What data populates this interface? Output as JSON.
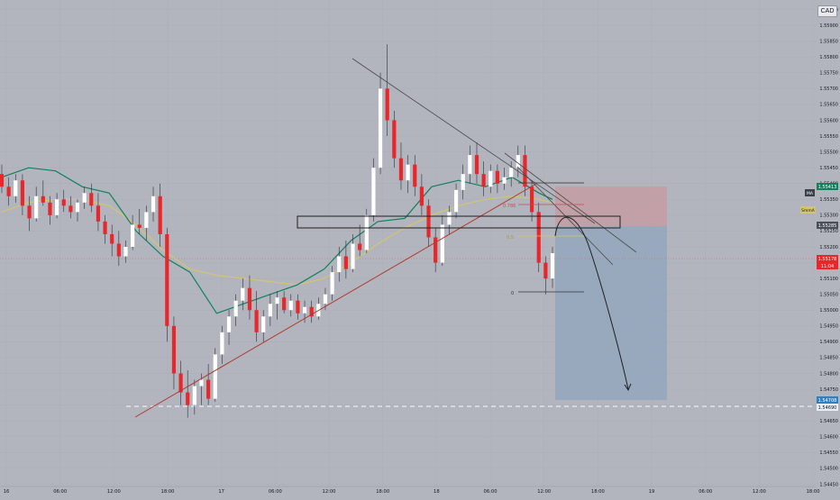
{
  "chart": {
    "currency_label": "CAD",
    "y_ticks": [
      "1.55950",
      "1.55900",
      "1.55850",
      "1.55800",
      "1.55750",
      "1.55700",
      "1.55650",
      "1.55600",
      "1.55550",
      "1.55500",
      "1.55450",
      "1.55400",
      "1.55350",
      "1.55300",
      "1.55250",
      "1.55200",
      "1.55150",
      "1.55100",
      "1.55050",
      "1.55000",
      "1.54950",
      "1.54900",
      "1.54850",
      "1.54800",
      "1.54750",
      "1.54700",
      "1.54650",
      "1.54600",
      "1.54550",
      "1.54500",
      "1.54450"
    ],
    "x_ticks": [
      "16",
      "06:00",
      "12:00",
      "18:00",
      "17",
      "06:00",
      "12:00",
      "18:00",
      "18",
      "06:00",
      "12:00",
      "18:00",
      "19",
      "06:00",
      "12:00",
      "18:00"
    ],
    "price_badges": {
      "ma_tag": "MA",
      "price_1554": "1.55413",
      "smma_label": "SmmA",
      "price_1552": "1.55285",
      "last_price": "1.55178",
      "countdown": "11:04",
      "target_price": "1.54708",
      "target_price_2": "1.54690"
    },
    "fib_labels": {
      "fib_0786": "0.786",
      "fib_05": "0.5",
      "fib_0": "0"
    },
    "colors": {
      "background": "#b2b5be",
      "bull": "#ffffff",
      "bear": "#e8272b",
      "ma_green": "#11805c",
      "smma_yellow": "#d4c56c",
      "trendline_red": "#b03a2e",
      "stop_zone": "#c79a9f",
      "target_zone": "#8fa5bd"
    }
  },
  "chart_data": {
    "type": "candlestick",
    "symbol_quote_currency": "CAD",
    "y_axis_ticks": [
      1.5595,
      1.559,
      1.5585,
      1.558,
      1.5575,
      1.557,
      1.5565,
      1.556,
      1.5555,
      1.555,
      1.5545,
      1.554,
      1.5535,
      1.553,
      1.5525,
      1.552,
      1.5515,
      1.551,
      1.5505,
      1.55,
      1.5495,
      1.549,
      1.5485,
      1.548,
      1.5475,
      1.547,
      1.5465,
      1.546,
      1.5455,
      1.545,
      1.5445
    ],
    "ylim": [
      1.5442,
      1.5598
    ],
    "x_axis_ticks": [
      "16",
      "06:00",
      "12:00",
      "18:00",
      "17",
      "06:00",
      "12:00",
      "18:00",
      "18",
      "06:00",
      "12:00",
      "18:00",
      "19",
      "06:00",
      "12:00",
      "18:00"
    ],
    "last_price": 1.55178,
    "annotated_levels": {
      "1.55413": 1.55413,
      "1.55285": 1.55285,
      "1.54708": 1.54708,
      "1.54690": 1.5469
    },
    "fibonacci": {
      "0.786": 1.5533,
      "0.5": 1.5526,
      "0": 1.5507
    },
    "series": [
      {
        "name": "MA",
        "points": [
          [
            0,
            1.5542
          ],
          [
            30,
            1.5545
          ],
          [
            60,
            1.5544
          ],
          [
            90,
            1.5539
          ],
          [
            120,
            1.5537
          ],
          [
            150,
            1.5525
          ],
          [
            180,
            1.5517
          ],
          [
            210,
            1.5512
          ],
          [
            240,
            1.5499
          ],
          [
            270,
            1.5502
          ],
          [
            300,
            1.5505
          ],
          [
            330,
            1.5508
          ],
          [
            360,
            1.5513
          ],
          [
            390,
            1.5522
          ],
          [
            420,
            1.5528
          ],
          [
            450,
            1.5529
          ],
          [
            480,
            1.5539
          ],
          [
            510,
            1.5541
          ],
          [
            540,
            1.5539
          ],
          [
            570,
            1.5542
          ],
          [
            600,
            1.5537
          ],
          [
            615,
            1.5535
          ]
        ]
      },
      {
        "name": "SmmA",
        "points": [
          [
            0,
            1.5531
          ],
          [
            30,
            1.5534
          ],
          [
            60,
            1.5535
          ],
          [
            90,
            1.5535
          ],
          [
            120,
            1.5533
          ],
          [
            150,
            1.5527
          ],
          [
            180,
            1.5519
          ],
          [
            210,
            1.5513
          ],
          [
            240,
            1.5511
          ],
          [
            270,
            1.551
          ],
          [
            300,
            1.5509
          ],
          [
            330,
            1.5508
          ],
          [
            360,
            1.551
          ],
          [
            390,
            1.5515
          ],
          [
            420,
            1.5521
          ],
          [
            450,
            1.5526
          ],
          [
            480,
            1.553
          ],
          [
            510,
            1.5533
          ],
          [
            540,
            1.5535
          ],
          [
            570,
            1.5536
          ],
          [
            600,
            1.5535
          ],
          [
            615,
            1.5534
          ]
        ]
      }
    ],
    "candles": [
      [
        1.5543,
        1.5546,
        1.5537,
        1.5539
      ],
      [
        1.5539,
        1.5542,
        1.5533,
        1.5536
      ],
      [
        1.5536,
        1.5543,
        1.5534,
        1.5541
      ],
      [
        1.5541,
        1.5543,
        1.553,
        1.5533
      ],
      [
        1.5533,
        1.5536,
        1.5525,
        1.5529
      ],
      [
        1.5529,
        1.5539,
        1.5528,
        1.5536
      ],
      [
        1.5536,
        1.5541,
        1.5533,
        1.5534
      ],
      [
        1.5534,
        1.5536,
        1.5527,
        1.553
      ],
      [
        1.553,
        1.5537,
        1.5529,
        1.5535
      ],
      [
        1.5535,
        1.5538,
        1.5531,
        1.5533
      ],
      [
        1.5533,
        1.5536,
        1.5529,
        1.5531
      ],
      [
        1.5531,
        1.5535,
        1.5528,
        1.5534
      ],
      [
        1.5534,
        1.5539,
        1.5532,
        1.5537
      ],
      [
        1.5537,
        1.554,
        1.5531,
        1.5533
      ],
      [
        1.5533,
        1.5537,
        1.5525,
        1.5528
      ],
      [
        1.5528,
        1.553,
        1.5521,
        1.5524
      ],
      [
        1.5524,
        1.5527,
        1.5517,
        1.5521
      ],
      [
        1.5521,
        1.5525,
        1.5514,
        1.5517
      ],
      [
        1.5517,
        1.5522,
        1.5515,
        1.552
      ],
      [
        1.552,
        1.553,
        1.5519,
        1.5527
      ],
      [
        1.5527,
        1.5532,
        1.5524,
        1.5526
      ],
      [
        1.5526,
        1.5533,
        1.5522,
        1.5531
      ],
      [
        1.5531,
        1.5539,
        1.5528,
        1.5536
      ],
      [
        1.5536,
        1.554,
        1.552,
        1.5524
      ],
      [
        1.5524,
        1.5526,
        1.549,
        1.5495
      ],
      [
        1.5495,
        1.5498,
        1.5475,
        1.548
      ],
      [
        1.548,
        1.5484,
        1.547,
        1.5474
      ],
      [
        1.5474,
        1.5481,
        1.5466,
        1.547
      ],
      [
        1.547,
        1.5478,
        1.5467,
        1.5476
      ],
      [
        1.5476,
        1.548,
        1.547,
        1.5478
      ],
      [
        1.5478,
        1.5483,
        1.547,
        1.5472
      ],
      [
        1.5472,
        1.5488,
        1.5471,
        1.5486
      ],
      [
        1.5486,
        1.5495,
        1.5483,
        1.5493
      ],
      [
        1.5493,
        1.55,
        1.5489,
        1.5498
      ],
      [
        1.5498,
        1.5505,
        1.5495,
        1.5503
      ],
      [
        1.5503,
        1.551,
        1.55,
        1.5507
      ],
      [
        1.5507,
        1.5511,
        1.5497,
        1.55
      ],
      [
        1.55,
        1.5506,
        1.549,
        1.5493
      ],
      [
        1.5493,
        1.55,
        1.549,
        1.5498
      ],
      [
        1.5498,
        1.5505,
        1.5495,
        1.5502
      ],
      [
        1.5502,
        1.5506,
        1.5497,
        1.5504
      ],
      [
        1.5504,
        1.5506,
        1.5499,
        1.55
      ],
      [
        1.55,
        1.5505,
        1.5498,
        1.5503
      ],
      [
        1.5503,
        1.5505,
        1.5497,
        1.5499
      ],
      [
        1.5499,
        1.5503,
        1.5496,
        1.5501
      ],
      [
        1.5501,
        1.5503,
        1.5496,
        1.5498
      ],
      [
        1.5498,
        1.5504,
        1.5497,
        1.5502
      ],
      [
        1.5502,
        1.5507,
        1.55,
        1.5505
      ],
      [
        1.5505,
        1.5514,
        1.5503,
        1.5512
      ],
      [
        1.5512,
        1.552,
        1.5509,
        1.5517
      ],
      [
        1.5517,
        1.5522,
        1.551,
        1.5513
      ],
      [
        1.5513,
        1.5524,
        1.5512,
        1.5521
      ],
      [
        1.5521,
        1.5527,
        1.5517,
        1.5519
      ],
      [
        1.5519,
        1.5532,
        1.5518,
        1.553
      ],
      [
        1.553,
        1.5548,
        1.5528,
        1.5545
      ],
      [
        1.5545,
        1.5575,
        1.5543,
        1.557
      ],
      [
        1.557,
        1.5584,
        1.5555,
        1.556
      ],
      [
        1.556,
        1.5563,
        1.5545,
        1.5548
      ],
      [
        1.5548,
        1.5553,
        1.5538,
        1.5541
      ],
      [
        1.5541,
        1.5549,
        1.5537,
        1.5546
      ],
      [
        1.5546,
        1.5549,
        1.5536,
        1.5539
      ],
      [
        1.5539,
        1.5543,
        1.553,
        1.5533
      ],
      [
        1.5533,
        1.5535,
        1.552,
        1.5523
      ],
      [
        1.5523,
        1.5526,
        1.5512,
        1.5515
      ],
      [
        1.5515,
        1.553,
        1.5514,
        1.5527
      ],
      [
        1.5527,
        1.5533,
        1.5524,
        1.5531
      ],
      [
        1.5531,
        1.554,
        1.5529,
        1.5538
      ],
      [
        1.5538,
        1.5546,
        1.5535,
        1.5543
      ],
      [
        1.5543,
        1.5552,
        1.554,
        1.5549
      ],
      [
        1.5549,
        1.5553,
        1.554,
        1.5543
      ],
      [
        1.5543,
        1.5547,
        1.5536,
        1.5539
      ],
      [
        1.5539,
        1.5546,
        1.5537,
        1.5544
      ],
      [
        1.5544,
        1.5546,
        1.5537,
        1.554
      ],
      [
        1.554,
        1.5545,
        1.5538,
        1.5542
      ],
      [
        1.5542,
        1.5547,
        1.5539,
        1.5545
      ],
      [
        1.5545,
        1.5552,
        1.5542,
        1.5549
      ],
      [
        1.5549,
        1.5552,
        1.5536,
        1.5539
      ],
      [
        1.5539,
        1.5541,
        1.5528,
        1.5531
      ],
      [
        1.5531,
        1.5534,
        1.5512,
        1.5515
      ],
      [
        1.5515,
        1.5517,
        1.5505,
        1.551
      ],
      [
        1.551,
        1.552,
        1.5507,
        1.5518
      ]
    ]
  }
}
